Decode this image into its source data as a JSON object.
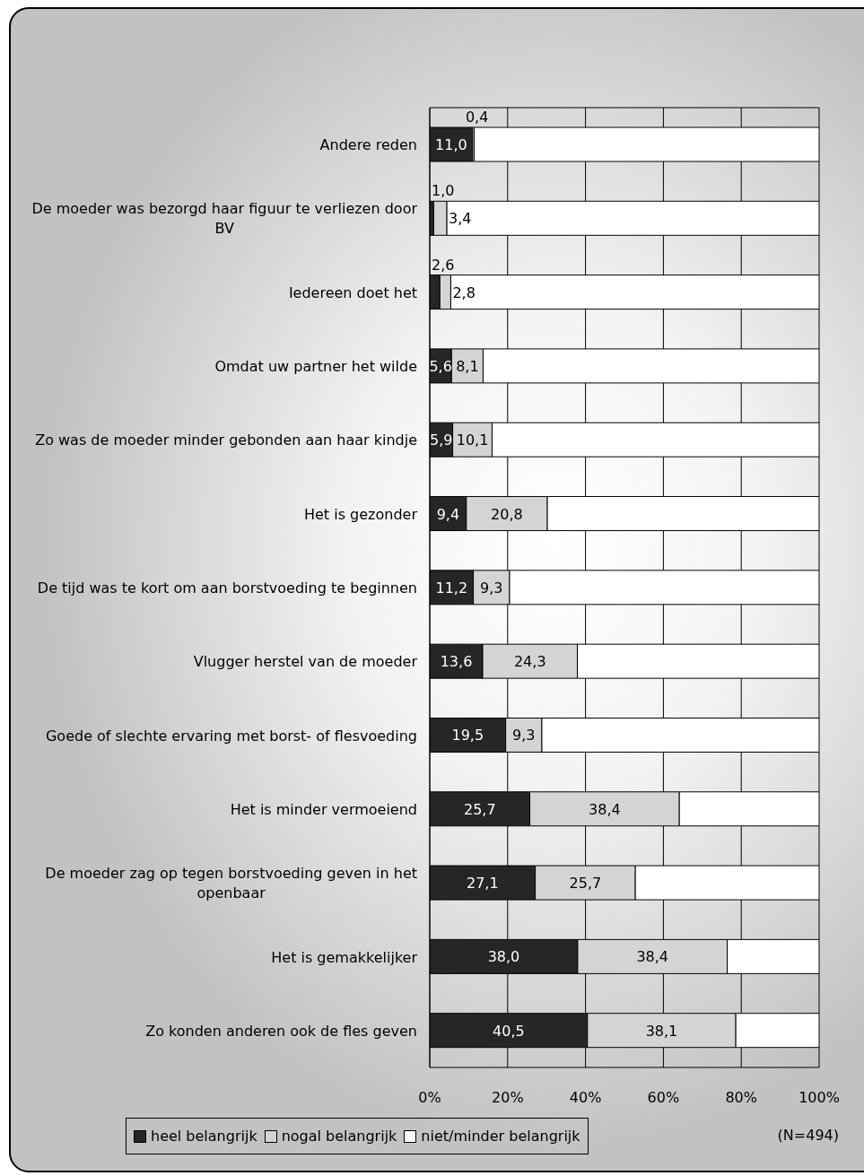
{
  "chart_data": {
    "type": "bar",
    "orientation": "horizontal",
    "stacked": true,
    "categories": [
      "Andere reden",
      "De moeder was bezorgd haar figuur te verliezen door BV",
      "Iedereen doet het",
      "Omdat uw partner het wilde",
      "Zo was de moeder minder gebonden aan haar kindje",
      "Het is gezonder",
      "De tijd was te kort om aan borstvoeding te beginnen",
      "Vlugger herstel van de moeder",
      "Goede of slechte ervaring met borst- of flesvoeding",
      "Het is minder vermoeiend",
      "De moeder zag op tegen borstvoeding geven in het openbaar",
      "Het is gemakkelijker",
      "Zo konden anderen ook de fles geven"
    ],
    "series": [
      {
        "name": "heel belangrijk",
        "color": "#262626",
        "values": [
          11.0,
          1.0,
          2.6,
          5.6,
          5.9,
          9.4,
          11.2,
          13.6,
          19.5,
          25.7,
          27.1,
          38.0,
          40.5
        ],
        "value_labels": [
          "11,0",
          "1,0",
          "2,6",
          "5,6",
          "5,9",
          "9,4",
          "11,2",
          "13,6",
          "19,5",
          "25,7",
          "27,1",
          "38,0",
          "40,5"
        ]
      },
      {
        "name": "nogal belangrijk",
        "color": "#d4d4d4",
        "values": [
          0.4,
          3.4,
          2.8,
          8.1,
          10.1,
          20.8,
          9.3,
          24.3,
          9.3,
          38.4,
          25.7,
          38.4,
          38.1
        ],
        "value_labels": [
          "0,4",
          "3,4",
          "2,8",
          "8,1",
          "10,1",
          "20,8",
          "9,3",
          "24,3",
          "9,3",
          "38,4",
          "25,7",
          "38,4",
          "38,1"
        ]
      },
      {
        "name": "niet/minder belangrijk",
        "color": "#ffffff",
        "values": [
          88.6,
          95.6,
          94.6,
          86.3,
          84.0,
          69.8,
          79.5,
          62.1,
          71.2,
          35.9,
          47.2,
          23.6,
          21.4
        ]
      }
    ],
    "xlim": [
      0,
      100
    ],
    "xticks": [
      {
        "value": 0,
        "label": "0%"
      },
      {
        "value": 20,
        "label": "20%"
      },
      {
        "value": 40,
        "label": "40%"
      },
      {
        "value": 60,
        "label": "60%"
      },
      {
        "value": 80,
        "label": "80%"
      },
      {
        "value": 100,
        "label": "100%"
      }
    ],
    "grid": "x",
    "legend": "bottom left",
    "annotations": [
      "(N=494)"
    ]
  }
}
